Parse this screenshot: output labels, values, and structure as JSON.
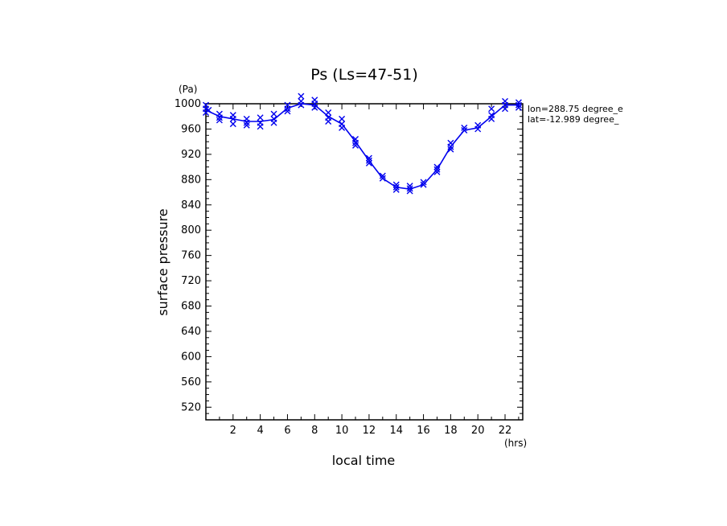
{
  "chart_data": {
    "type": "line",
    "title": "Ps (Ls=47-51)",
    "xlabel": "local time",
    "ylabel": "surface pressure",
    "x_unit": "(hrs)",
    "y_unit": "(Pa)",
    "xlim": [
      0,
      23.3
    ],
    "ylim": [
      500,
      1000
    ],
    "x_ticks": [
      2,
      4,
      6,
      8,
      10,
      12,
      14,
      16,
      18,
      20,
      22
    ],
    "y_ticks": [
      520,
      560,
      600,
      640,
      680,
      720,
      760,
      800,
      840,
      880,
      920,
      960,
      1000
    ],
    "grid": false,
    "annotations": [
      "lon=288.75 degree_e",
      "lat=-12.989 degree_"
    ],
    "series": [
      {
        "color": "#0000ee",
        "x": [
          0,
          1,
          2,
          3,
          4,
          5,
          6,
          7,
          8,
          9,
          10,
          11,
          12,
          13,
          14,
          15,
          16,
          17,
          18,
          19,
          20,
          21,
          22,
          23
        ],
        "y": [
          990,
          980,
          976,
          972,
          972,
          975,
          993,
          1000,
          998,
          980,
          968,
          940,
          910,
          882,
          868,
          865,
          872,
          896,
          932,
          958,
          962,
          980,
          998,
          998
        ]
      }
    ],
    "scatter_points": {
      "x": [
        0,
        0,
        0,
        0.2,
        1,
        1,
        1,
        2,
        2,
        2,
        3,
        3,
        3,
        4,
        4,
        4,
        5,
        5,
        5,
        6,
        6,
        6,
        7,
        7,
        7,
        8,
        8,
        8,
        9,
        9,
        9,
        10,
        10,
        10,
        11,
        11,
        11,
        12,
        12,
        12,
        13,
        13,
        14,
        14,
        14,
        15,
        15,
        15,
        16,
        16,
        17,
        17,
        17,
        18,
        18,
        18,
        19,
        19,
        20,
        20,
        21,
        21,
        21,
        22,
        22,
        22,
        23,
        23,
        23
      ],
      "y": [
        998,
        992,
        986,
        990,
        984,
        978,
        974,
        982,
        976,
        968,
        976,
        970,
        966,
        978,
        970,
        964,
        984,
        976,
        970,
        998,
        992,
        988,
        1012,
        1004,
        998,
        1006,
        1000,
        994,
        986,
        978,
        972,
        976,
        968,
        962,
        944,
        938,
        934,
        914,
        910,
        906,
        886,
        882,
        872,
        868,
        864,
        870,
        866,
        862,
        876,
        872,
        900,
        896,
        892,
        938,
        932,
        928,
        962,
        958,
        966,
        960,
        992,
        982,
        976,
        1004,
        998,
        992,
        1002,
        998,
        994
      ]
    }
  }
}
